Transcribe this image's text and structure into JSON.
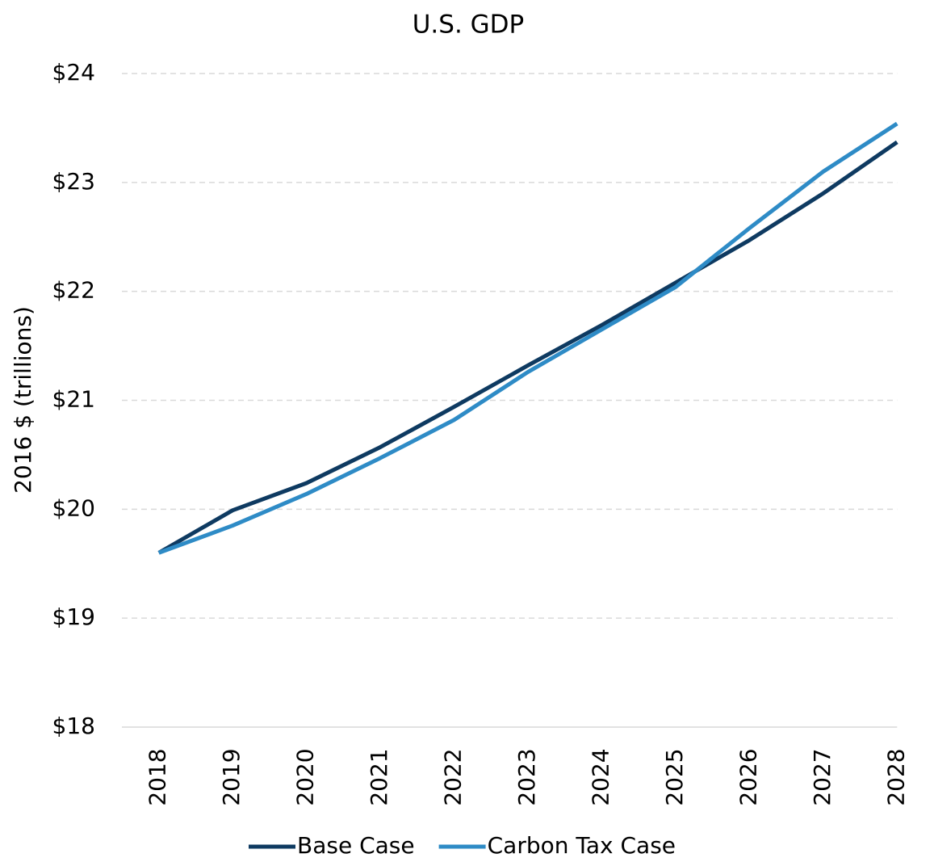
{
  "chart_data": {
    "type": "line",
    "title": "U.S. GDP",
    "y_label": "2016 $ (trillions)",
    "categories": [
      "2018",
      "2019",
      "2020",
      "2021",
      "2022",
      "2023",
      "2024",
      "2025",
      "2026",
      "2027",
      "2028"
    ],
    "series": [
      {
        "name": "Base Case",
        "color": "#0e3a61",
        "values": [
          19.6,
          19.99,
          20.24,
          20.57,
          20.94,
          21.32,
          21.69,
          22.08,
          22.47,
          22.9,
          23.37
        ]
      },
      {
        "name": "Carbon Tax Case",
        "color": "#2e8bc6",
        "values": [
          19.6,
          19.85,
          20.14,
          20.47,
          20.82,
          21.26,
          21.65,
          22.04,
          22.58,
          23.1,
          23.54
        ]
      }
    ],
    "ylim": [
      18,
      24
    ],
    "yticks": [
      {
        "value": 18,
        "label": "$18"
      },
      {
        "value": 19,
        "label": "$19"
      },
      {
        "value": 20,
        "label": "$20"
      },
      {
        "value": 21,
        "label": "$21"
      },
      {
        "value": 22,
        "label": "$22"
      },
      {
        "value": 23,
        "label": "$23"
      },
      {
        "value": 24,
        "label": "$24"
      }
    ],
    "grid": true,
    "legend": "bottom"
  }
}
